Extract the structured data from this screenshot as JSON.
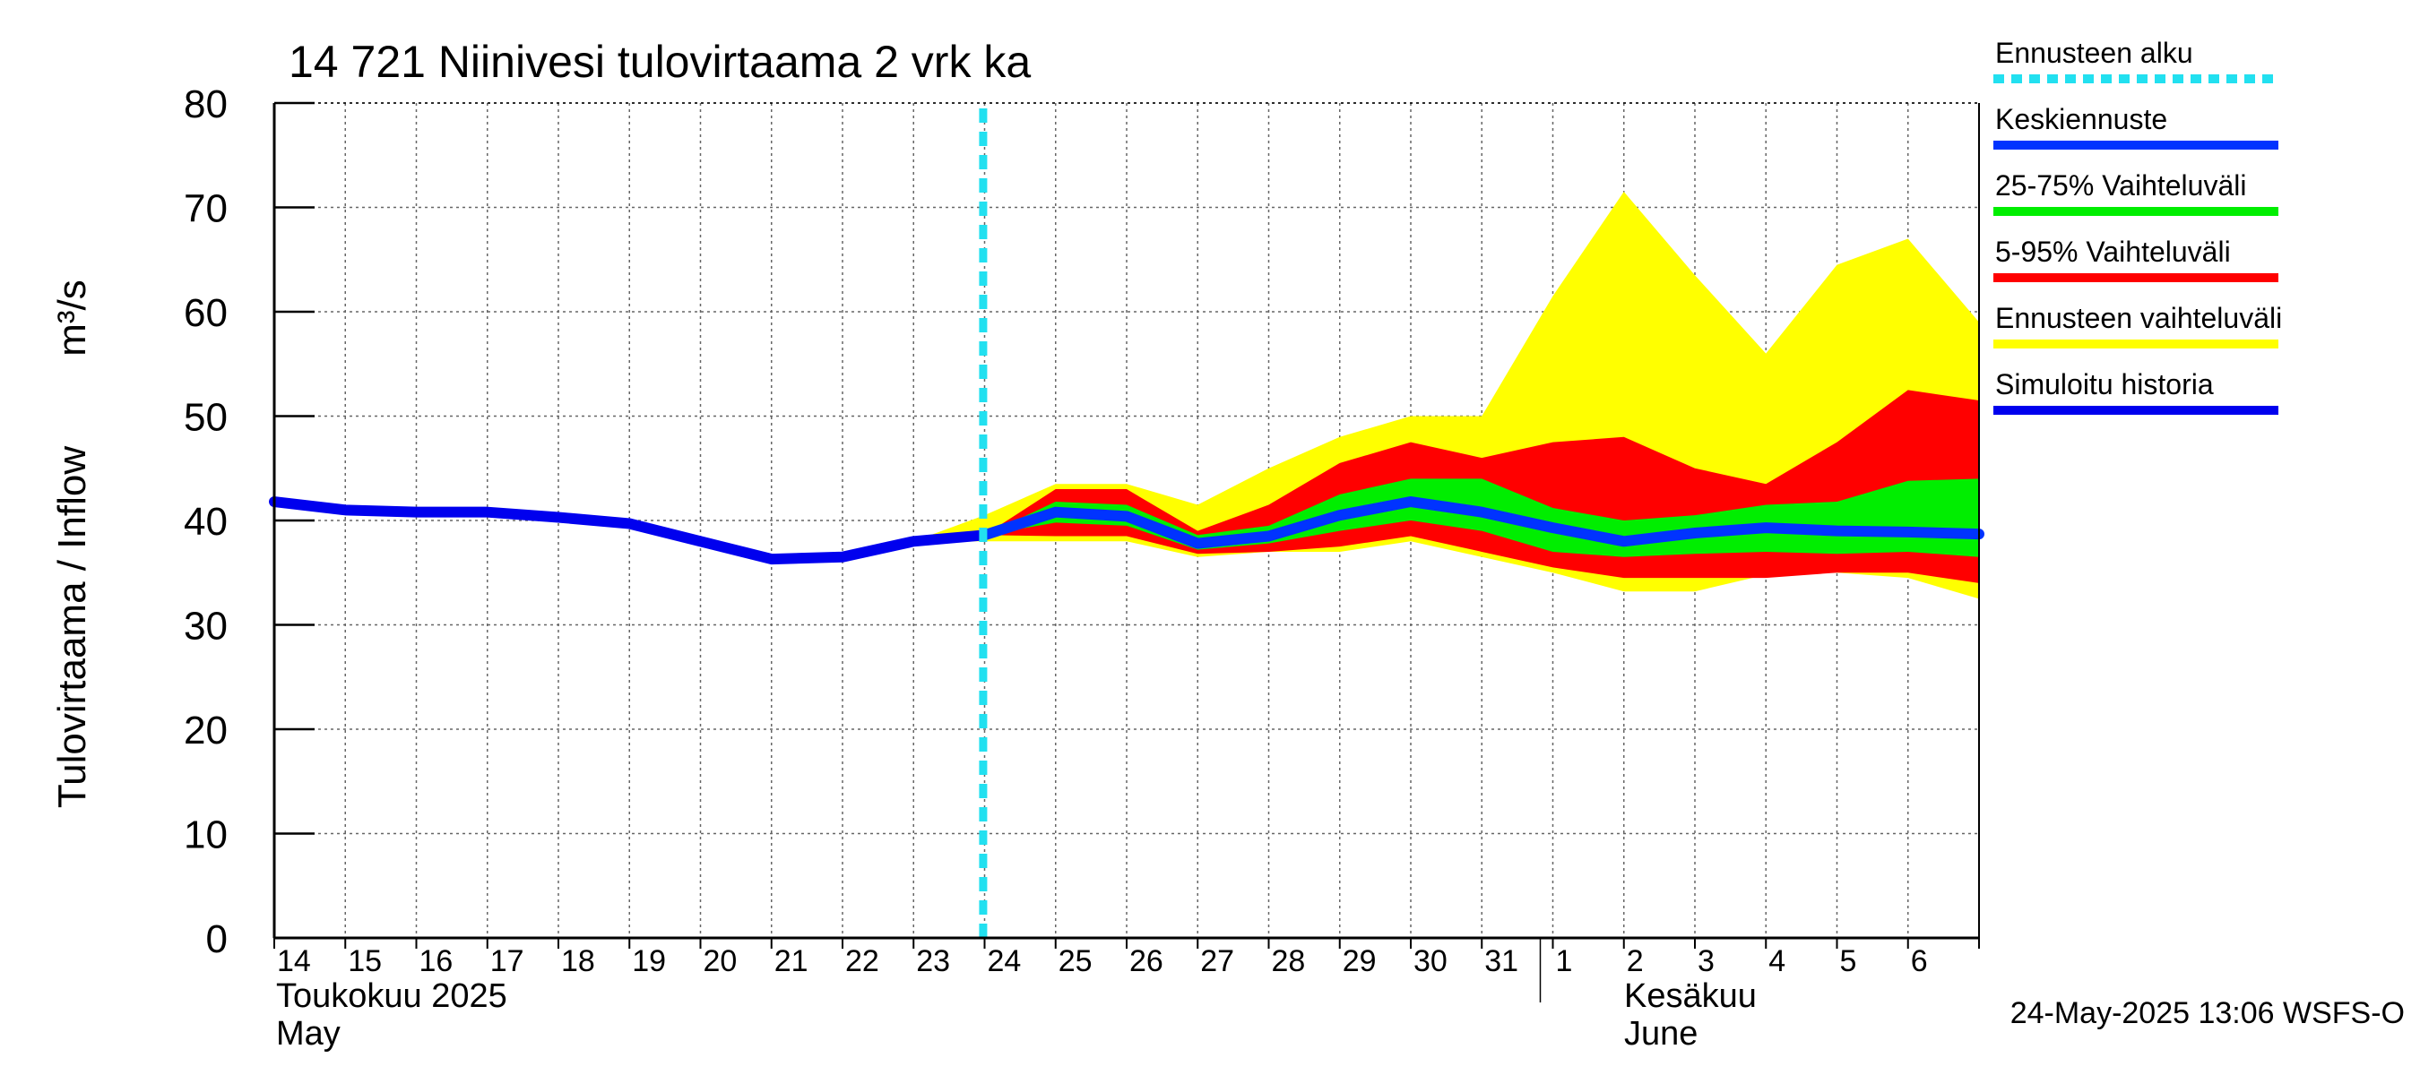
{
  "chart_data": {
    "type": "area",
    "title": "14 721 Niinivesi tulovirtaama 2 vrk ka",
    "ylabel": "Tulovirtaama / Inflow",
    "yunit": "m³/s",
    "ylim": [
      0,
      80
    ],
    "yticks": [
      0,
      10,
      20,
      30,
      40,
      50,
      60,
      70,
      80
    ],
    "x_dates": [
      "2025-05-14",
      "2025-05-15",
      "2025-05-16",
      "2025-05-17",
      "2025-05-18",
      "2025-05-19",
      "2025-05-20",
      "2025-05-21",
      "2025-05-22",
      "2025-05-23",
      "2025-05-24",
      "2025-05-25",
      "2025-05-26",
      "2025-05-27",
      "2025-05-28",
      "2025-05-29",
      "2025-05-30",
      "2025-05-31",
      "2025-06-01",
      "2025-06-02",
      "2025-06-03",
      "2025-06-04",
      "2025-06-05",
      "2025-06-06"
    ],
    "x_tick_labels": [
      "14",
      "15",
      "16",
      "17",
      "18",
      "19",
      "20",
      "21",
      "22",
      "23",
      "24",
      "25",
      "26",
      "27",
      "28",
      "29",
      "30",
      "31",
      "1",
      "2",
      "3",
      "4",
      "5",
      "6"
    ],
    "month_labels": [
      {
        "line1": "Toukokuu  2025",
        "line2": "May"
      },
      {
        "line1": "Kesäkuu",
        "line2": "June"
      }
    ],
    "grid": true,
    "forecast_start": "2025-05-24",
    "series": [
      {
        "name": "Simuloitu historia",
        "color": "#0000ee",
        "x": [
          "2025-05-14",
          "2025-05-15",
          "2025-05-16",
          "2025-05-17",
          "2025-05-18",
          "2025-05-19",
          "2025-05-20",
          "2025-05-21",
          "2025-05-22",
          "2025-05-23",
          "2025-05-24"
        ],
        "values": [
          41.8,
          41.0,
          40.8,
          40.8,
          40.3,
          39.7,
          38.0,
          36.3,
          36.5,
          38.0,
          38.6
        ]
      },
      {
        "name": "Keskiennuste",
        "color": "#0033ff",
        "x": [
          "2025-05-24",
          "2025-05-25",
          "2025-05-26",
          "2025-05-27",
          "2025-05-28",
          "2025-05-29",
          "2025-05-30",
          "2025-05-31",
          "2025-06-01",
          "2025-06-02",
          "2025-06-03",
          "2025-06-04",
          "2025-06-05",
          "2025-06-06",
          "2025-06-07"
        ],
        "values": [
          38.6,
          40.8,
          40.4,
          37.8,
          38.5,
          40.5,
          41.8,
          40.8,
          39.3,
          38.0,
          38.8,
          39.3,
          39.0,
          38.9,
          38.7
        ]
      }
    ],
    "bands": [
      {
        "name": "Ennusteen vaihteluväli",
        "color": "#ffff00",
        "x": [
          "2025-05-23",
          "2025-05-24",
          "2025-05-25",
          "2025-05-26",
          "2025-05-27",
          "2025-05-28",
          "2025-05-29",
          "2025-05-30",
          "2025-05-31",
          "2025-06-01",
          "2025-06-02",
          "2025-06-03",
          "2025-06-04",
          "2025-06-05",
          "2025-06-06",
          "2025-06-07"
        ],
        "upper": [
          38.0,
          40.5,
          43.5,
          43.5,
          41.5,
          45.0,
          48.0,
          50.0,
          50.0,
          61.5,
          71.5,
          63.5,
          56.0,
          64.5,
          67.0,
          59.0
        ],
        "lower": [
          38.0,
          38.0,
          38.0,
          38.0,
          36.5,
          37.0,
          37.0,
          38.0,
          36.5,
          35.0,
          33.2,
          33.2,
          34.8,
          35.0,
          34.5,
          32.5
        ]
      },
      {
        "name": "5-95% Vaihteluväli",
        "color": "#ff0000",
        "x": [
          "2025-05-24",
          "2025-05-25",
          "2025-05-26",
          "2025-05-27",
          "2025-05-28",
          "2025-05-29",
          "2025-05-30",
          "2025-05-31",
          "2025-06-01",
          "2025-06-02",
          "2025-06-03",
          "2025-06-04",
          "2025-06-05",
          "2025-06-06",
          "2025-06-07"
        ],
        "upper": [
          38.6,
          43.0,
          43.0,
          39.0,
          41.5,
          45.5,
          47.5,
          46.0,
          47.5,
          48.0,
          45.0,
          43.5,
          47.5,
          52.5,
          51.5
        ],
        "lower": [
          38.6,
          38.5,
          38.5,
          36.8,
          37.0,
          37.5,
          38.5,
          37.0,
          35.5,
          34.5,
          34.5,
          34.5,
          35.0,
          35.0,
          34.0
        ]
      },
      {
        "name": "25-75% Vaihteluväli",
        "color": "#00ee00",
        "x": [
          "2025-05-24",
          "2025-05-25",
          "2025-05-26",
          "2025-05-27",
          "2025-05-28",
          "2025-05-29",
          "2025-05-30",
          "2025-05-31",
          "2025-06-01",
          "2025-06-02",
          "2025-06-03",
          "2025-06-04",
          "2025-06-05",
          "2025-06-06",
          "2025-06-07"
        ],
        "upper": [
          38.6,
          41.8,
          41.5,
          38.6,
          39.5,
          42.5,
          44.0,
          44.0,
          41.2,
          40.0,
          40.5,
          41.5,
          41.8,
          43.8,
          44.0
        ],
        "lower": [
          38.6,
          39.8,
          39.5,
          37.2,
          37.8,
          39.0,
          40.0,
          39.0,
          37.0,
          36.5,
          36.8,
          37.0,
          36.8,
          37.0,
          36.5
        ]
      }
    ],
    "legend_position": "right",
    "legend": [
      {
        "label": "Ennusteen alku",
        "color": "#22e0f0",
        "style": "dashed"
      },
      {
        "label": "Keskiennuste",
        "color": "#0033ff",
        "style": "solid"
      },
      {
        "label": "25-75% Vaihteluväli",
        "color": "#00ee00",
        "style": "solid"
      },
      {
        "label": "5-95% Vaihteluväli",
        "color": "#ff0000",
        "style": "solid"
      },
      {
        "label": "Ennusteen vaihteluväli",
        "color": "#ffff00",
        "style": "solid"
      },
      {
        "label": "Simuloitu historia",
        "color": "#0000ee",
        "style": "solid"
      }
    ],
    "timestamp": "24-May-2025 13:06 WSFS-O"
  }
}
